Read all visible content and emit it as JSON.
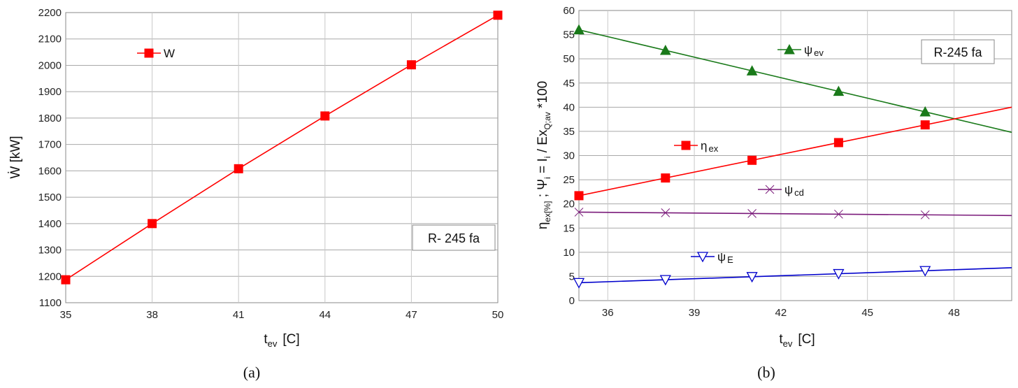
{
  "chart_data": [
    {
      "type": "line",
      "panel_label": "(a)",
      "xlabel": {
        "main": "t",
        "sub": "ev",
        "unit": "[C]"
      },
      "ylabel": {
        "main": "Ẇ [kW]"
      },
      "xlim": [
        35,
        50
      ],
      "ylim": [
        1100,
        2200
      ],
      "xticks": [
        "35",
        "38",
        "41",
        "44",
        "47",
        "50"
      ],
      "yticks": [
        "1100",
        "1200",
        "1300",
        "1400",
        "1500",
        "1600",
        "1700",
        "1800",
        "1900",
        "2000",
        "2100",
        "2200"
      ],
      "grid": true,
      "annotation": "R- 245 fa",
      "series": [
        {
          "name": "W",
          "color": "#ff0000",
          "marker": "square-filled",
          "x": [
            35,
            38,
            41,
            44,
            47,
            50
          ],
          "y": [
            1187,
            1400,
            1608,
            1808,
            2002,
            2190
          ],
          "markers_x": [
            35,
            38,
            41,
            44,
            47,
            50
          ],
          "legend": {
            "main": "W",
            "sub": ""
          }
        }
      ]
    },
    {
      "type": "line",
      "panel_label": "(b)",
      "xlabel": {
        "main": "t",
        "sub": "ev",
        "unit": "[C]"
      },
      "ylabel": {
        "main": "η",
        "sub1": "ex[%]",
        "mid": " ; Ψ",
        "sub2": "i",
        "mid2": " = I",
        "sub3": "i",
        "mid3": " / Ex",
        "sub4": "Q;av",
        "tail": " *100"
      },
      "xlim": [
        35,
        50
      ],
      "ylim": [
        0,
        60
      ],
      "xticks": [
        "36",
        "39",
        "42",
        "45",
        "48"
      ],
      "yticks": [
        "0",
        "5",
        "10",
        "15",
        "20",
        "25",
        "30",
        "35",
        "40",
        "45",
        "50",
        "55",
        "60"
      ],
      "grid": true,
      "annotation": "R-245 fa",
      "series": [
        {
          "name": "ψev",
          "color": "#1a7a1a",
          "marker": "triangle-up-filled",
          "x": [
            35,
            50
          ],
          "y": [
            56,
            34.8
          ],
          "markers_x": [
            35,
            38,
            41,
            44,
            47
          ],
          "legend": {
            "main": "ψ",
            "sub": "ev"
          }
        },
        {
          "name": "ηex",
          "color": "#ff0000",
          "marker": "square-filled",
          "x": [
            35,
            50
          ],
          "y": [
            21.7,
            40
          ],
          "markers_x": [
            35,
            38,
            41,
            44,
            47
          ],
          "legend": {
            "main": "η",
            "sub": "ex"
          }
        },
        {
          "name": "ψcd",
          "color": "#7a1a7a",
          "marker": "bowtie",
          "x": [
            35,
            50
          ],
          "y": [
            18.3,
            17.6
          ],
          "markers_x": [
            35,
            38,
            41,
            44,
            47
          ],
          "legend": {
            "main": "ψ",
            "sub": "cd"
          }
        },
        {
          "name": "ψE",
          "color": "#0000cc",
          "marker": "triangle-down-open",
          "x": [
            35,
            50
          ],
          "y": [
            3.7,
            6.8
          ],
          "markers_x": [
            35,
            38,
            41,
            44,
            47
          ],
          "legend": {
            "main": "ψ",
            "sub": "E"
          }
        }
      ]
    }
  ]
}
